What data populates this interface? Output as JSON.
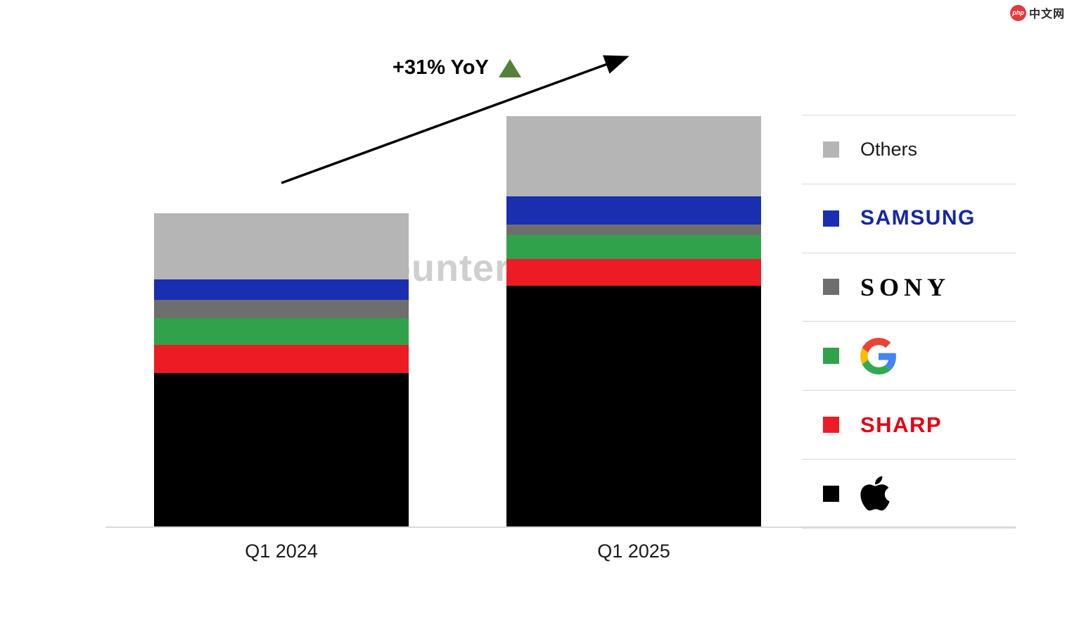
{
  "site": {
    "badge": "php",
    "badge_color": "#e13b3f",
    "name": "中文网"
  },
  "watermark": {
    "text": "Counterpoint"
  },
  "annotation": {
    "label": "+31% YoY",
    "triangle_color": "#538135"
  },
  "chart_data": {
    "type": "bar",
    "stacked": true,
    "categories": [
      "Q1 2024",
      "Q1 2025"
    ],
    "unit": "indexed volume, Q1 2024 total = 100 (estimated from bar heights)",
    "totals": [
      100,
      131
    ],
    "yoy_growth_label": "+31% YoY",
    "series": [
      {
        "name": "Apple",
        "color": "#000000",
        "values": [
          49,
          77
        ]
      },
      {
        "name": "Sharp",
        "color": "#ed1c24",
        "values": [
          9,
          8.5
        ]
      },
      {
        "name": "Google",
        "color": "#31a24c",
        "values": [
          8.5,
          7.5
        ]
      },
      {
        "name": "Sony",
        "color": "#6e6e6e",
        "values": [
          6,
          3.5
        ]
      },
      {
        "name": "Samsung",
        "color": "#1a2eb0",
        "values": [
          6.5,
          9
        ]
      },
      {
        "name": "Others",
        "color": "#b5b5b5",
        "values": [
          21,
          25.5
        ]
      }
    ],
    "legend_position": "right",
    "legend_order_top_to_bottom": [
      "Others",
      "Samsung",
      "Sony",
      "Google",
      "Sharp",
      "Apple"
    ],
    "axis_line_color": "#d9d9d9"
  },
  "legend": {
    "items": [
      {
        "label": "Others",
        "swatch": "#b5b5b5",
        "label_color": "#1a1a1a"
      },
      {
        "label": "SAMSUNG",
        "swatch": "#1a2eb0",
        "label_color": "#1428a0"
      },
      {
        "label": "SONY",
        "swatch": "#6e6e6e",
        "label_color": "#000000"
      },
      {
        "label": "Google",
        "swatch": "#31a24c"
      },
      {
        "label": "SHARP",
        "swatch": "#ed1c24",
        "label_color": "#e60012"
      },
      {
        "label": "Apple",
        "swatch": "#000000"
      }
    ]
  }
}
